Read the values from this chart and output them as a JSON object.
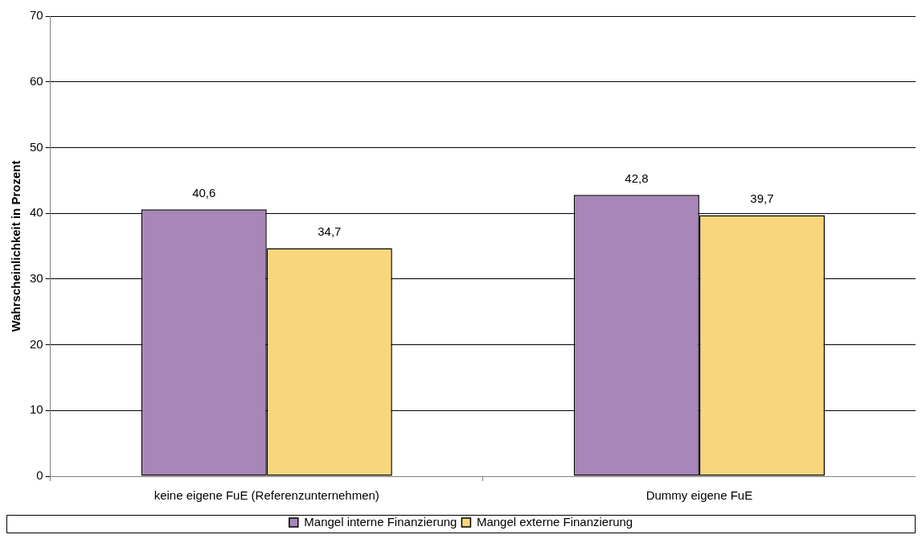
{
  "chart_data": {
    "type": "bar",
    "ylabel": "Wahrscheinlichkeit in Prozent",
    "categories": [
      "keine eigene FuE (Referenzunternehmen)",
      "Dummy eigene FuE"
    ],
    "series": [
      {
        "name": "Mangel interne Finanzierung",
        "color": "#a886b8",
        "values": [
          40.6,
          42.8
        ],
        "value_labels": [
          "40,6",
          "42,8"
        ]
      },
      {
        "name": "Mangel externe Finanzierung",
        "color": "#f9d67c",
        "values": [
          34.7,
          39.7
        ],
        "value_labels": [
          "34,7",
          "39,7"
        ]
      }
    ],
    "ylim": [
      0,
      70
    ],
    "yticks": [
      0,
      10,
      20,
      30,
      40,
      50,
      60,
      70
    ],
    "grid": "y",
    "legend": "bottom"
  }
}
